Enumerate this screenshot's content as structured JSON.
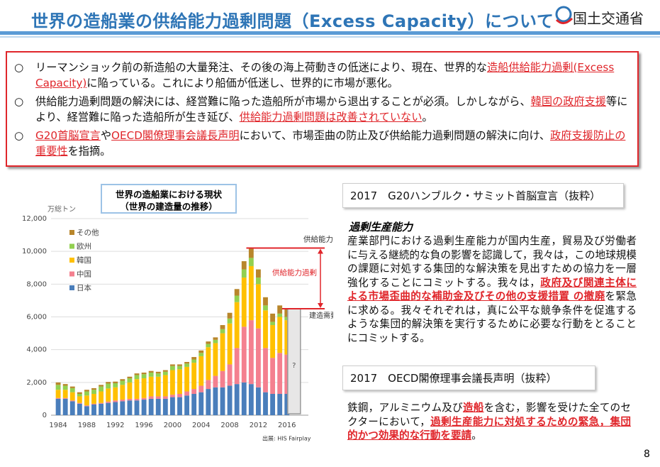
{
  "header": {
    "title": "世界の造船業の供給能力過剰問題（Excess Capacity）について",
    "logo": "国土交通省"
  },
  "summary": {
    "marker": "○",
    "bullets": [
      {
        "segments": [
          {
            "text": "リーマンショック前の新造船の大量発注、その後の海上荷動きの低迷により、現在、世界的な"
          },
          {
            "text": "造船供給能力過剰(Excess Capacity)",
            "emphasis": true
          },
          {
            "text": "に陥っている。これにより船価が低迷し、世界的に市場が悪化。"
          }
        ]
      },
      {
        "segments": [
          {
            "text": "供給能力過剰問題の解決には、経営難に陥った造船所が市場から退出することが必須。しかしながら、"
          },
          {
            "text": "韓国の政府支援",
            "emphasis": true
          },
          {
            "text": "等により、経営難に陥った造船所が生き延び、"
          },
          {
            "text": "供給能力過剰問題は改善されていない",
            "emphasis": true
          },
          {
            "text": "。"
          }
        ]
      },
      {
        "segments": [
          {
            "text": "G20首脳宣言",
            "emphasis": true
          },
          {
            "text": "や"
          },
          {
            "text": "OECD閣僚理事会議長声明",
            "emphasis": true
          },
          {
            "text": "において、市場歪曲の防止及び供給能力過剰問題の解決に向け、"
          },
          {
            "text": "政府支援防止の重要性",
            "emphasis": true
          },
          {
            "text": "を指摘。"
          }
        ]
      }
    ]
  },
  "chart_data": {
    "type": "stacked-bar",
    "title": [
      "世界の造船業における現状",
      "（世界の建造量の推移）"
    ],
    "ylabel": "万総トン",
    "x": [
      1984,
      1985,
      1986,
      1987,
      1988,
      1989,
      1990,
      1991,
      1992,
      1993,
      1994,
      1995,
      1996,
      1997,
      1998,
      1999,
      2000,
      2001,
      2002,
      2003,
      2004,
      2005,
      2006,
      2007,
      2008,
      2009,
      2010,
      2011,
      2012,
      2013,
      2014,
      2015,
      2016
    ],
    "xlim": [
      1983,
      2019
    ],
    "xticks": [
      1984,
      1988,
      1992,
      1996,
      2000,
      2004,
      2008,
      2012,
      2016
    ],
    "ylim": [
      0,
      12000
    ],
    "yticks": [
      0,
      {
        "value": 2000,
        "label": "2,000"
      },
      {
        "value": 4000,
        "label": "4,000"
      },
      {
        "value": 6000,
        "label": "6,000"
      },
      {
        "value": 8000,
        "label": "8,000"
      },
      {
        "value": 10000,
        "label": "10,000"
      },
      {
        "value": 12000,
        "label": "12,000"
      }
    ],
    "grid": true,
    "legend": "top-left",
    "series": [
      {
        "name": "日本",
        "color": "#4a7ebb",
        "values": [
          1000,
          1000,
          850,
          700,
          550,
          650,
          700,
          750,
          800,
          850,
          900,
          900,
          950,
          1000,
          1000,
          1000,
          1100,
          1100,
          1200,
          1300,
          1400,
          1600,
          1700,
          1700,
          1800,
          1900,
          2000,
          1900,
          1700,
          1400,
          1300,
          1300,
          1300
        ]
      },
      {
        "name": "中国",
        "color": "#f4808f",
        "values": [
          50,
          50,
          50,
          50,
          50,
          50,
          50,
          80,
          100,
          100,
          100,
          100,
          100,
          150,
          150,
          150,
          150,
          200,
          250,
          300,
          400,
          550,
          700,
          1000,
          1300,
          2200,
          3400,
          3900,
          3600,
          2700,
          2200,
          2500,
          2400
        ]
      },
      {
        "name": "韓国",
        "color": "#ffc000",
        "values": [
          500,
          500,
          500,
          400,
          600,
          600,
          700,
          800,
          800,
          900,
          1000,
          1200,
          1200,
          1200,
          1200,
          1300,
          1500,
          1500,
          1500,
          1600,
          1800,
          2000,
          2000,
          2300,
          2500,
          2800,
          3000,
          3300,
          2700,
          2300,
          2000,
          2200,
          2100
        ]
      },
      {
        "name": "欧州",
        "color": "#92d050",
        "values": [
          300,
          250,
          250,
          150,
          250,
          250,
          300,
          300,
          250,
          250,
          250,
          250,
          250,
          250,
          200,
          200,
          250,
          200,
          200,
          200,
          200,
          200,
          200,
          250,
          300,
          400,
          500,
          500,
          400,
          300,
          200,
          200,
          200
        ]
      },
      {
        "name": "その他",
        "color": "#b8862b",
        "values": [
          150,
          100,
          100,
          100,
          100,
          100,
          100,
          100,
          100,
          100,
          100,
          100,
          100,
          100,
          100,
          100,
          100,
          100,
          100,
          150,
          150,
          150,
          150,
          250,
          350,
          400,
          500,
          600,
          500,
          500,
          500,
          500,
          500
        ]
      }
    ],
    "annotations": {
      "capacity": "供給能力",
      "excess": "供給能力過剰",
      "demand": "建造需要",
      "unknown": "?"
    },
    "source": "出展: HIS Fairplay"
  },
  "right": {
    "g20": {
      "heading": "2017　G20ハンブルク・サミット首脳宣言（抜粋）",
      "subheading": "過剰生産能力",
      "segments": [
        {
          "text": "産業部門における過剰生産能力が国内生産，貿易及び労働者に与える継続的な負の影響を認識して，我々は，この地球規模の課題に対処する集団的な解決策を見出すための協力を一層強化することにコミットする。我々は，"
        },
        {
          "text": "政府及び関連主体による市場歪曲的な補助金及びその他の支援措置 の撤廃",
          "emphasis": true
        },
        {
          "text": "を緊急に求める。我々それぞれは，真に公平な競争条件を促進するような集団的解決策を実行するために必要な行動をとることにコミットする。"
        }
      ]
    },
    "oecd": {
      "heading": "2017　OECD閣僚理事会議長声明（抜粋）",
      "segments": [
        {
          "text": "鉄鋼，アルミニウム及び"
        },
        {
          "text": "造船",
          "emphasis": true
        },
        {
          "text": "を含む，影響を受けた全てのセクターにおいて，"
        },
        {
          "text": "過剰生産能力に対処するための緊急，集団的かつ効果的な行動を要請",
          "emphasis": true
        },
        {
          "text": "。"
        }
      ]
    }
  },
  "footer": {
    "page": "8"
  }
}
